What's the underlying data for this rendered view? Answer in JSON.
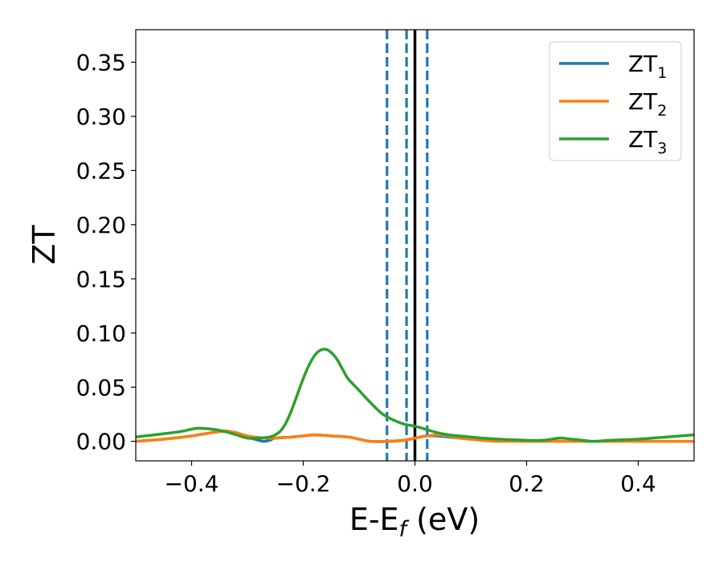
{
  "chart_data": {
    "type": "line",
    "title": "",
    "xlabel": {
      "main": "E-E",
      "sub": "f",
      "suffix": " (eV)"
    },
    "ylabel": "ZT",
    "xlim": [
      -0.5,
      0.5
    ],
    "ylim": [
      -0.018,
      0.38
    ],
    "x_ticks": [
      -0.4,
      -0.2,
      0.0,
      0.2,
      0.4
    ],
    "x_tick_labels": [
      "−0.4",
      "−0.2",
      "0.0",
      "0.2",
      "0.4"
    ],
    "y_ticks": [
      0.0,
      0.05,
      0.1,
      0.15,
      0.2,
      0.25,
      0.3,
      0.35
    ],
    "y_tick_labels": [
      "0.00",
      "0.05",
      "0.10",
      "0.15",
      "0.20",
      "0.25",
      "0.30",
      "0.35"
    ],
    "grid": false,
    "legend_position": "top-right",
    "vertical_lines": [
      {
        "x": 0.0,
        "style": "solid",
        "color": "#000000"
      },
      {
        "x": -0.05,
        "style": "dashed",
        "color": "#1f77b4"
      },
      {
        "x": -0.015,
        "style": "dashed",
        "color": "#1f77b4"
      },
      {
        "x": 0.022,
        "style": "dashed",
        "color": "#1f77b4"
      }
    ],
    "series": [
      {
        "name": {
          "main": "ZT",
          "sub": "1"
        },
        "color": "#1f77b4",
        "x": [
          -0.5,
          -0.45,
          -0.4,
          -0.35,
          -0.32,
          -0.3,
          -0.28,
          -0.27,
          -0.26,
          -0.25,
          -0.22,
          -0.2,
          -0.18,
          -0.15,
          -0.12,
          -0.1,
          -0.08,
          -0.05,
          -0.02,
          0.0,
          0.02,
          0.04,
          0.06,
          0.08,
          0.1,
          0.12,
          0.15,
          0.2,
          0.25,
          0.3,
          0.35,
          0.4,
          0.45,
          0.5
        ],
        "y": [
          0.0,
          0.002,
          0.005,
          0.009,
          0.008,
          0.004,
          0.001,
          0.0,
          0.001,
          0.003,
          0.004,
          0.005,
          0.006,
          0.005,
          0.004,
          0.002,
          0.0,
          0.0,
          0.001,
          0.003,
          0.005,
          0.005,
          0.004,
          0.003,
          0.002,
          0.001,
          0.0,
          0.0,
          0.0,
          0.0,
          0.0,
          0.0,
          0.0,
          0.0
        ]
      },
      {
        "name": {
          "main": "ZT",
          "sub": "2"
        },
        "color": "#ff7f0e",
        "x": [
          -0.5,
          -0.45,
          -0.4,
          -0.35,
          -0.33,
          -0.3,
          -0.27,
          -0.25,
          -0.22,
          -0.2,
          -0.18,
          -0.15,
          -0.12,
          -0.1,
          -0.08,
          -0.05,
          -0.02,
          0.0,
          0.02,
          0.04,
          0.06,
          0.08,
          0.1,
          0.12,
          0.15,
          0.2,
          0.25,
          0.3,
          0.35,
          0.4,
          0.45,
          0.5
        ],
        "y": [
          0.0,
          0.002,
          0.005,
          0.009,
          0.009,
          0.005,
          0.003,
          0.003,
          0.004,
          0.005,
          0.006,
          0.005,
          0.004,
          0.002,
          0.0,
          0.0,
          0.001,
          0.003,
          0.005,
          0.006,
          0.005,
          0.003,
          0.002,
          0.001,
          0.0,
          0.0,
          0.0,
          0.0,
          0.0,
          0.0,
          0.0,
          0.0
        ]
      },
      {
        "name": {
          "main": "ZT",
          "sub": "3"
        },
        "color": "#2ca02c",
        "x": [
          -0.5,
          -0.45,
          -0.42,
          -0.39,
          -0.36,
          -0.34,
          -0.32,
          -0.3,
          -0.28,
          -0.26,
          -0.25,
          -0.24,
          -0.23,
          -0.22,
          -0.21,
          -0.2,
          -0.19,
          -0.18,
          -0.17,
          -0.16,
          -0.15,
          -0.14,
          -0.13,
          -0.12,
          -0.1,
          -0.08,
          -0.06,
          -0.04,
          -0.02,
          0.0,
          0.02,
          0.04,
          0.06,
          0.08,
          0.1,
          0.12,
          0.15,
          0.2,
          0.23,
          0.26,
          0.28,
          0.3,
          0.32,
          0.35,
          0.4,
          0.45,
          0.5
        ],
        "y": [
          0.004,
          0.007,
          0.009,
          0.012,
          0.011,
          0.009,
          0.006,
          0.003,
          0.003,
          0.004,
          0.006,
          0.01,
          0.018,
          0.03,
          0.044,
          0.058,
          0.07,
          0.079,
          0.084,
          0.085,
          0.082,
          0.076,
          0.067,
          0.058,
          0.047,
          0.036,
          0.026,
          0.02,
          0.016,
          0.014,
          0.011,
          0.008,
          0.006,
          0.005,
          0.004,
          0.003,
          0.002,
          0.001,
          0.001,
          0.003,
          0.002,
          0.001,
          0.0,
          0.001,
          0.002,
          0.004,
          0.006
        ]
      }
    ]
  }
}
